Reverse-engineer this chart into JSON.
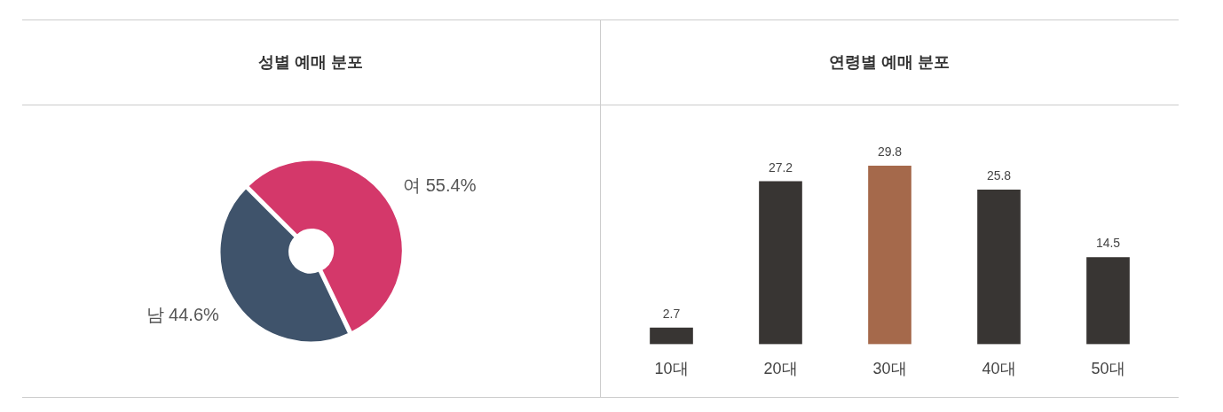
{
  "chart_data": [
    {
      "type": "donut",
      "title": "성별 예매 분포",
      "categories": [
        "여",
        "남"
      ],
      "values": [
        55.4,
        44.6
      ],
      "colors": [
        "#d4386a",
        "#3f536b"
      ],
      "value_labels": [
        "55.4%",
        "44.6%"
      ]
    },
    {
      "type": "bar",
      "title": "연령별 예매 분포",
      "categories": [
        "10대",
        "20대",
        "30대",
        "40대",
        "50대"
      ],
      "values": [
        2.7,
        27.2,
        29.8,
        25.8,
        14.5
      ],
      "colors": [
        "#383533",
        "#383533",
        "#a5694b",
        "#383533",
        "#383533"
      ],
      "data_labels": true
    }
  ]
}
